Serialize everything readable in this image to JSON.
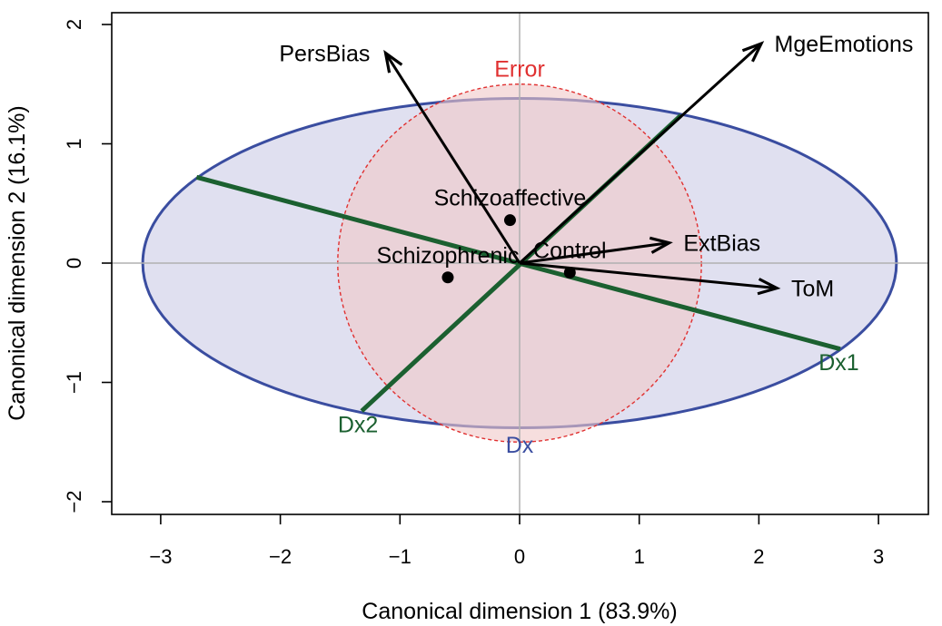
{
  "chart_data": {
    "type": "scatter",
    "xlabel": "Canonical dimension 1 (83.9%)",
    "ylabel": "Canonical dimension 2 (16.1%)",
    "xlim": [
      -3.4,
      3.4
    ],
    "ylim": [
      -2.1,
      2.1
    ],
    "xticks": [
      -3,
      -2,
      -1,
      0,
      1,
      2,
      3
    ],
    "yticks": [
      -2,
      -1,
      0,
      1,
      2
    ],
    "tick_labels": {
      "x": [
        "−3",
        "−2",
        "−1",
        "0",
        "1",
        "2",
        "3"
      ],
      "y": [
        "−2",
        "−1",
        "0",
        "1",
        "2"
      ]
    },
    "reference_lines": {
      "x": 0,
      "y": 0,
      "color": "#b0b0b0"
    },
    "points": [
      {
        "label": "Schizoaffective",
        "x": -0.08,
        "y": 0.36
      },
      {
        "label": "Schizophrenic",
        "x": -0.6,
        "y": -0.12
      },
      {
        "label": "Control",
        "x": 0.42,
        "y": -0.08
      }
    ],
    "point_color": "#000000",
    "vectors": [
      {
        "label": "PersBias",
        "x": -1.12,
        "y": 1.76
      },
      {
        "label": "MgeEmotions",
        "x": 2.02,
        "y": 1.84
      },
      {
        "label": "ExtBias",
        "x": 1.25,
        "y": 0.17
      },
      {
        "label": "ToM",
        "x": 2.15,
        "y": -0.21
      }
    ],
    "vector_color": "#000000",
    "ellipses": [
      {
        "label": "Dx",
        "center": [
          0,
          0
        ],
        "rx": 3.15,
        "ry": 1.38,
        "fill": "#e0e0f0",
        "stroke": "#3a4da0",
        "label_color": "#3a4da0"
      },
      {
        "label": "Error",
        "center": [
          0,
          0
        ],
        "rx": 1.52,
        "ry": 1.5,
        "fill": "#f0c8c8",
        "stroke": "#e03030",
        "label_color": "#e03030"
      }
    ],
    "axes_lines": [
      {
        "label": "Dx1",
        "from": [
          -2.7,
          0.72
        ],
        "to": [
          2.68,
          -0.72
        ]
      },
      {
        "label": "Dx2",
        "from": [
          -1.32,
          -1.24
        ],
        "to": [
          1.35,
          1.24
        ]
      }
    ],
    "axes_line_color": "#1b6030"
  }
}
